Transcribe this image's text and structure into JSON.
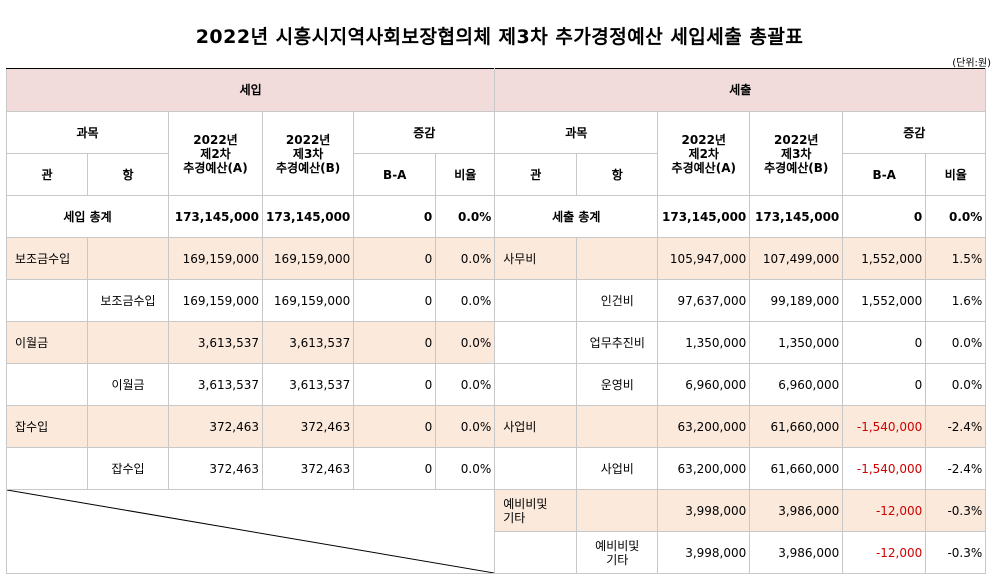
{
  "title": "2022년 시흥시지역사회보장협의체 제3차 추가경정예산 세입세출 총괄표",
  "unit": "(단위:원)",
  "revenue": {
    "section_label": "세입",
    "headers": {
      "category": "과목",
      "gwan": "관",
      "hang": "항",
      "col_a": "2022년\n제2차\n추경예산(A)",
      "col_b": "2022년\n제3차\n추경예산(B)",
      "change": "증감",
      "diff": "B-A",
      "ratio": "비율"
    },
    "total": {
      "label": "세입 총계",
      "a": "173,145,000",
      "b": "173,145,000",
      "diff": "0",
      "ratio": "0.0%"
    },
    "rows": [
      {
        "gwan": "보조금수입",
        "hang": "",
        "a": "169,159,000",
        "b": "169,159,000",
        "diff": "0",
        "ratio": "0.0%"
      },
      {
        "gwan": "",
        "hang": "보조금수입",
        "a": "169,159,000",
        "b": "169,159,000",
        "diff": "0",
        "ratio": "0.0%"
      },
      {
        "gwan": "이월금",
        "hang": "",
        "a": "3,613,537",
        "b": "3,613,537",
        "diff": "0",
        "ratio": "0.0%"
      },
      {
        "gwan": "",
        "hang": "이월금",
        "a": "3,613,537",
        "b": "3,613,537",
        "diff": "0",
        "ratio": "0.0%"
      },
      {
        "gwan": "잡수입",
        "hang": "",
        "a": "372,463",
        "b": "372,463",
        "diff": "0",
        "ratio": "0.0%"
      },
      {
        "gwan": "",
        "hang": "잡수입",
        "a": "372,463",
        "b": "372,463",
        "diff": "0",
        "ratio": "0.0%"
      }
    ]
  },
  "expenditure": {
    "section_label": "세출",
    "headers": {
      "category": "과목",
      "gwan": "관",
      "hang": "항",
      "col_a": "2022년\n제2차\n추경예산(A)",
      "col_b": "2022년\n제3차\n추경예산(B)",
      "change": "증감",
      "diff": "B-A",
      "ratio": "비율"
    },
    "total": {
      "label": "세출 총계",
      "a": "173,145,000",
      "b": "173,145,000",
      "diff": "0",
      "ratio": "0.0%"
    },
    "rows": [
      {
        "gwan": "사무비",
        "hang": "",
        "a": "105,947,000",
        "b": "107,499,000",
        "diff": "1,552,000",
        "ratio": "1.5%"
      },
      {
        "gwan": "",
        "hang": "인건비",
        "a": "97,637,000",
        "b": "99,189,000",
        "diff": "1,552,000",
        "ratio": "1.6%"
      },
      {
        "gwan": "",
        "hang": "업무추진비",
        "a": "1,350,000",
        "b": "1,350,000",
        "diff": "0",
        "ratio": "0.0%"
      },
      {
        "gwan": "",
        "hang": "운영비",
        "a": "6,960,000",
        "b": "6,960,000",
        "diff": "0",
        "ratio": "0.0%"
      },
      {
        "gwan": "사업비",
        "hang": "",
        "a": "63,200,000",
        "b": "61,660,000",
        "diff": "-1,540,000",
        "ratio": "-2.4%"
      },
      {
        "gwan": "",
        "hang": "사업비",
        "a": "63,200,000",
        "b": "61,660,000",
        "diff": "-1,540,000",
        "ratio": "-2.4%"
      },
      {
        "gwan": "예비비및\n기타",
        "hang": "",
        "a": "3,998,000",
        "b": "3,986,000",
        "diff": "-12,000",
        "ratio": "-0.3%"
      },
      {
        "gwan": "",
        "hang": "예비비및\n기타",
        "a": "3,998,000",
        "b": "3,986,000",
        "diff": "-12,000",
        "ratio": "-0.3%"
      }
    ]
  },
  "colors": {
    "header_bg": "#f2dcdb",
    "subtotal_bg": "#fbe9dc",
    "negative": "#d00000"
  }
}
